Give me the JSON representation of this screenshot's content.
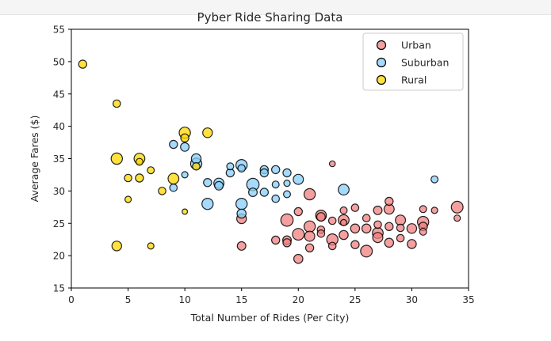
{
  "chart_data": {
    "type": "scatter",
    "title": "Pyber Ride Sharing Data",
    "xlabel": "Total Number of Rides (Per City)",
    "ylabel": "Average Fares ($)",
    "xlim": [
      0,
      35
    ],
    "ylim": [
      15,
      55
    ],
    "xticks": [
      0,
      5,
      10,
      15,
      20,
      25,
      30,
      35
    ],
    "yticks": [
      15,
      20,
      25,
      30,
      35,
      40,
      45,
      50,
      55
    ],
    "grid": false,
    "legend_position": "top-right",
    "marker_size": "proportional to driver count",
    "series": [
      {
        "name": "Urban",
        "color": "#f08080",
        "edge_color": "#000000",
        "points": [
          [
            15,
            25.7,
            1.2
          ],
          [
            15,
            21.5,
            1.0
          ],
          [
            18,
            22.4,
            0.9
          ],
          [
            19,
            25.5,
            1.7
          ],
          [
            19,
            22.4,
            1.0
          ],
          [
            19,
            22.0,
            0.9
          ],
          [
            20,
            23.3,
            1.6
          ],
          [
            20,
            19.5,
            1.1
          ],
          [
            20,
            26.8,
            0.9
          ],
          [
            21,
            29.5,
            1.5
          ],
          [
            21,
            24.5,
            1.5
          ],
          [
            21,
            23.0,
            1.3
          ],
          [
            21,
            21.2,
            0.9
          ],
          [
            22,
            26.2,
            1.4
          ],
          [
            22,
            26.0,
            1.0
          ],
          [
            22,
            24.0,
            0.8
          ],
          [
            22,
            23.4,
            0.8
          ],
          [
            23,
            22.5,
            1.5
          ],
          [
            23,
            25.4,
            0.8
          ],
          [
            23,
            21.5,
            0.8
          ],
          [
            23,
            34.2,
            0.5
          ],
          [
            24,
            25.5,
            1.4
          ],
          [
            24,
            23.2,
            1.1
          ],
          [
            24,
            27.0,
            0.7
          ],
          [
            24,
            25.1,
            0.6
          ],
          [
            25,
            24.2,
            1.1
          ],
          [
            25,
            27.4,
            0.8
          ],
          [
            25,
            21.7,
            0.9
          ],
          [
            26,
            20.7,
            1.6
          ],
          [
            26,
            24.2,
            1.1
          ],
          [
            26,
            25.8,
            0.8
          ],
          [
            27,
            23.5,
            1.4
          ],
          [
            27,
            22.8,
            1.3
          ],
          [
            27,
            27.0,
            1.0
          ],
          [
            27,
            24.8,
            0.8
          ],
          [
            28,
            27.2,
            1.3
          ],
          [
            28,
            24.5,
            0.9
          ],
          [
            28,
            28.4,
            0.9
          ],
          [
            28,
            22.0,
            1.1
          ],
          [
            29,
            25.5,
            1.3
          ],
          [
            29,
            22.7,
            0.8
          ],
          [
            29,
            24.3,
            0.8
          ],
          [
            30,
            24.2,
            1.2
          ],
          [
            30,
            21.8,
            1.1
          ],
          [
            31,
            25.2,
            1.5
          ],
          [
            31,
            24.5,
            1.0
          ],
          [
            31,
            23.7,
            0.7
          ],
          [
            31,
            27.2,
            0.7
          ],
          [
            32,
            27.0,
            0.6
          ],
          [
            34,
            27.5,
            1.6
          ],
          [
            34,
            25.8,
            0.6
          ]
        ]
      },
      {
        "name": "Suburban",
        "color": "#87cefa",
        "edge_color": "#000000",
        "points": [
          [
            9,
            37.2,
            0.9
          ],
          [
            9,
            30.5,
            0.8
          ],
          [
            10,
            36.8,
            1.0
          ],
          [
            10,
            32.5,
            0.6
          ],
          [
            11,
            34.2,
            1.5
          ],
          [
            11,
            35.0,
            1.2
          ],
          [
            12,
            28.0,
            1.5
          ],
          [
            12,
            31.3,
            0.9
          ],
          [
            13,
            31.2,
            1.3
          ],
          [
            13,
            30.8,
            1.0
          ],
          [
            14,
            32.8,
            0.9
          ],
          [
            14,
            33.8,
            0.7
          ],
          [
            15,
            34.0,
            1.5
          ],
          [
            15,
            28.0,
            1.5
          ],
          [
            15,
            26.5,
            1.1
          ],
          [
            15,
            33.5,
            0.8
          ],
          [
            16,
            31.0,
            1.7
          ],
          [
            16,
            29.8,
            1.0
          ],
          [
            17,
            33.3,
            0.9
          ],
          [
            17,
            32.8,
            0.9
          ],
          [
            17,
            29.8,
            0.9
          ],
          [
            18,
            33.3,
            0.9
          ],
          [
            18,
            31.0,
            0.7
          ],
          [
            18,
            28.8,
            0.8
          ],
          [
            19,
            32.8,
            0.9
          ],
          [
            19,
            31.2,
            0.6
          ],
          [
            19,
            29.5,
            0.7
          ],
          [
            20,
            31.8,
            1.3
          ],
          [
            24,
            30.2,
            1.4
          ],
          [
            32,
            31.8,
            0.7
          ]
        ]
      },
      {
        "name": "Rural",
        "color": "#ffd700",
        "edge_color": "#000000",
        "points": [
          [
            1,
            49.6,
            0.9
          ],
          [
            4,
            43.5,
            0.8
          ],
          [
            4,
            35.0,
            1.5
          ],
          [
            4,
            21.5,
            1.2
          ],
          [
            5,
            32.0,
            0.8
          ],
          [
            5,
            28.7,
            0.6
          ],
          [
            6,
            35.0,
            1.4
          ],
          [
            6,
            34.5,
            0.7
          ],
          [
            6,
            32.0,
            0.9
          ],
          [
            7,
            33.2,
            0.7
          ],
          [
            7,
            21.5,
            0.6
          ],
          [
            8,
            30.0,
            0.8
          ],
          [
            9,
            31.9,
            1.4
          ],
          [
            10,
            39.0,
            1.5
          ],
          [
            10,
            38.2,
            0.9
          ],
          [
            10,
            26.8,
            0.4
          ],
          [
            11,
            33.8,
            0.8
          ],
          [
            12,
            39.0,
            1.2
          ]
        ]
      }
    ]
  }
}
